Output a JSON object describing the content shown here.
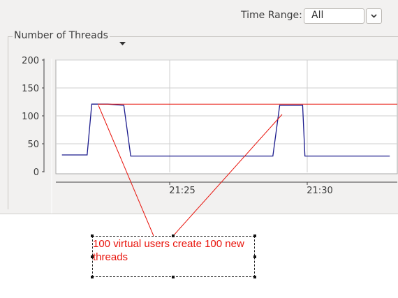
{
  "toolbar": {
    "time_range_label": "Time Range:",
    "time_range_value": "All"
  },
  "group": {
    "title": "Number of Threads"
  },
  "colors": {
    "series_line": "#1a1a8c",
    "annotation": "#e8140c",
    "grid": "#cfcfcf",
    "plot_bg": "#ffffff"
  },
  "chart_data": {
    "type": "line",
    "title": "",
    "xlabel": "",
    "ylabel": "",
    "x_tick_labels": [
      "21:25",
      "21:30"
    ],
    "y_ticks": [
      0,
      50,
      100,
      150,
      200
    ],
    "ylim": [
      0,
      200
    ],
    "grid": true,
    "series": [
      {
        "x": [
          "21:21:05",
          "21:22:00",
          "21:22:10",
          "21:22:45",
          "21:23:20",
          "21:23:35",
          "21:28:45",
          "21:29:00",
          "21:29:50",
          "21:29:55",
          "21:33:00"
        ],
        "y": [
          30,
          30,
          121,
          121,
          119,
          28,
          28,
          119,
          119,
          28,
          28
        ]
      }
    ],
    "reference_line": {
      "y": 121
    }
  },
  "annotation": {
    "text": "100 virtual users create 100 new threads"
  }
}
